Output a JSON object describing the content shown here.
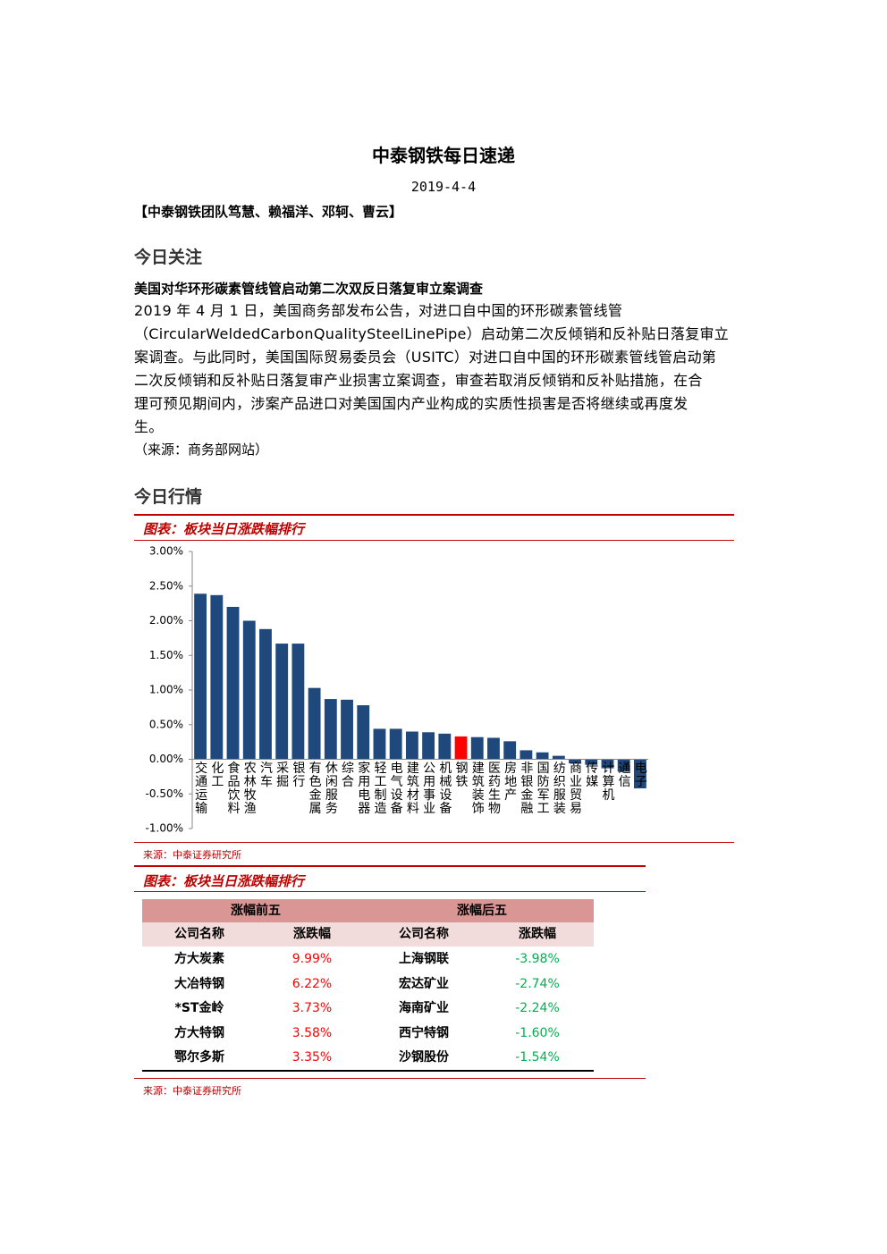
{
  "header": {
    "title": "中泰钢铁每日速递",
    "date": "2019-4-4",
    "authors": "【中泰钢铁团队笃慧、赖福洋、邓轲、曹云】"
  },
  "focus": {
    "heading": "今日关注",
    "article_title": "美国对华环形碳素管线管启动第二次双反日落复审立案调查",
    "lines": [
      "2019 年 4 月 1 日，美国商务部发布公告，对进口自中国的环形碳素管线管",
      "（CircularWeldedCarbonQualitySteelLinePipe）启动第二次反倾销和反补贴日落复审立",
      "案调查。与此同时，美国国际贸易委员会（USITC）对进口自中国的环形碳素管线管启动第",
      "二次反倾销和反补贴日落复审产业损害立案调查，审查若取消反倾销和反补贴措施，在合",
      "理可预见期间内，涉案产品进口对美国国内产业构成的实质性损害是否将继续或再度发",
      "生。"
    ],
    "source": "（来源：商务部网站）"
  },
  "market": {
    "heading": "今日行情"
  },
  "chart_data": {
    "type": "bar",
    "title": "图表：板块当日涨跌幅排行",
    "source": "来源：中泰证券研究所",
    "categories": [
      "交通运输",
      "化工",
      "食品饮料",
      "农林牧渔",
      "汽车",
      "采掘",
      "银行",
      "有色金属",
      "休闲服务",
      "综合",
      "家用电器",
      "轻工制造",
      "电气设备",
      "建筑材料",
      "公用事业",
      "机械设备",
      "钢铁",
      "建筑装饰",
      "医药生物",
      "房地产",
      "非银金融",
      "国防军工",
      "纺织服装",
      "商业贸易",
      "传媒",
      "计算机",
      "通信",
      "电子"
    ],
    "values": [
      2.39,
      2.37,
      2.2,
      2.0,
      1.88,
      1.67,
      1.67,
      1.03,
      0.87,
      0.86,
      0.78,
      0.44,
      0.44,
      0.4,
      0.39,
      0.37,
      0.33,
      0.32,
      0.31,
      0.26,
      0.13,
      0.1,
      0.05,
      -0.06,
      -0.08,
      -0.13,
      -0.18,
      -0.42
    ],
    "colors": [
      "#1f497d",
      "#1f497d",
      "#1f497d",
      "#1f497d",
      "#1f497d",
      "#1f497d",
      "#1f497d",
      "#1f497d",
      "#1f497d",
      "#1f497d",
      "#1f497d",
      "#1f497d",
      "#1f497d",
      "#1f497d",
      "#1f497d",
      "#1f497d",
      "#ff0000",
      "#1f497d",
      "#1f497d",
      "#1f497d",
      "#1f497d",
      "#1f497d",
      "#1f497d",
      "#1f497d",
      "#1f497d",
      "#1f497d",
      "#1f497d",
      "#1f497d"
    ],
    "ylim": [
      -1,
      3
    ],
    "yticks": [
      {
        "value": -1,
        "label": "-1.00%"
      },
      {
        "value": -0.5,
        "label": "-0.50%"
      },
      {
        "value": 0,
        "label": "0.00%"
      },
      {
        "value": 0.5,
        "label": "0.50%"
      },
      {
        "value": 1,
        "label": "1.00%"
      },
      {
        "value": 1.5,
        "label": "1.50%"
      },
      {
        "value": 2,
        "label": "2.00%"
      },
      {
        "value": 2.5,
        "label": "2.50%"
      },
      {
        "value": 3,
        "label": "3.00%"
      }
    ]
  },
  "table": {
    "title": "图表：板块当日涨跌幅排行",
    "groups": [
      "涨幅前五",
      "涨幅后五"
    ],
    "columns": [
      "公司名称",
      "涨跌幅",
      "公司名称",
      "涨跌幅"
    ],
    "rows": [
      [
        "方大炭素",
        "9.99%",
        "上海钢联",
        "-3.98%"
      ],
      [
        "大冶特钢",
        "6.22%",
        "宏达矿业",
        "-2.74%"
      ],
      [
        "*ST金岭",
        "3.73%",
        "海南矿业",
        "-2.24%"
      ],
      [
        "方大特钢",
        "3.58%",
        "西宁特钢",
        "-1.60%"
      ],
      [
        "鄂尔多斯",
        "3.35%",
        "沙钢股份",
        "-1.54%"
      ]
    ],
    "source": "来源：中泰证券研究所"
  }
}
